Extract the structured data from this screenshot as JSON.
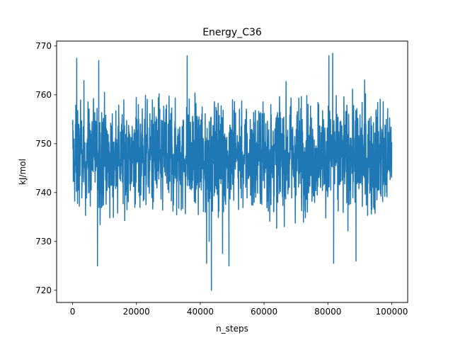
{
  "chart_data": {
    "type": "line",
    "title": "Energy_C36",
    "xlabel": "n_steps",
    "ylabel": "kJ/mol",
    "xlim": [
      -5000,
      105000
    ],
    "ylim": [
      717.5,
      771
    ],
    "xticks": [
      0,
      20000,
      40000,
      60000,
      80000,
      100000
    ],
    "yticks": [
      720,
      730,
      740,
      750,
      760,
      770
    ],
    "grid": false,
    "legend": "none",
    "series": [
      {
        "color": "#1f77b4",
        "n_points": 100000,
        "x_start": 0,
        "x_end": 100000,
        "typical_band": [
          733,
          762
        ],
        "notable_points": [
          {
            "x": 1300,
            "y": 767.5
          },
          {
            "x": 7800,
            "y": 725
          },
          {
            "x": 8200,
            "y": 767
          },
          {
            "x": 35900,
            "y": 768
          },
          {
            "x": 42000,
            "y": 725.5
          },
          {
            "x": 42800,
            "y": 730
          },
          {
            "x": 43500,
            "y": 720
          },
          {
            "x": 47000,
            "y": 727.5
          },
          {
            "x": 49000,
            "y": 725
          },
          {
            "x": 81500,
            "y": 768.5
          },
          {
            "x": 80300,
            "y": 768
          },
          {
            "x": 81800,
            "y": 725.5
          },
          {
            "x": 88800,
            "y": 726
          }
        ]
      }
    ]
  }
}
